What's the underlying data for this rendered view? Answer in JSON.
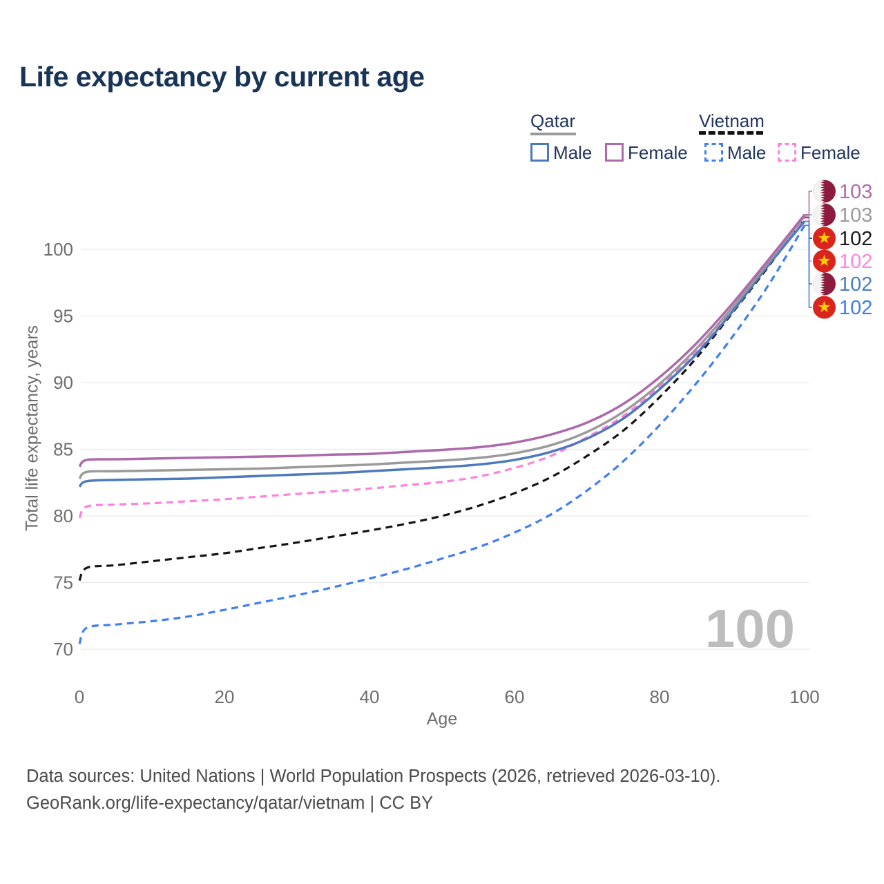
{
  "page": {
    "title": "Life expectancy by current age"
  },
  "legend": {
    "qatar": {
      "label": "Qatar",
      "male": "Male",
      "female": "Female"
    },
    "vietnam": {
      "label": "Vietnam",
      "male": "Male",
      "female": "Female"
    }
  },
  "chart_data": {
    "type": "line",
    "title": "Life expectancy by current age",
    "xlabel": "Age",
    "ylabel": "Total life expectancy, years",
    "xlim": [
      0,
      100
    ],
    "ylim": [
      70,
      100
    ],
    "x_ticks": [
      0,
      20,
      40,
      60,
      80,
      100
    ],
    "y_ticks": [
      70,
      75,
      80,
      85,
      90,
      95,
      100
    ],
    "grid": "horizontal",
    "legend_position": "top-right",
    "age_annotation": "100",
    "x": [
      0,
      1,
      5,
      10,
      15,
      20,
      25,
      30,
      35,
      40,
      45,
      50,
      55,
      60,
      65,
      70,
      75,
      80,
      85,
      90,
      95,
      100
    ],
    "series": [
      {
        "id": "qatar-female",
        "name": "Qatar Female",
        "country": "Qatar",
        "sex": "Female",
        "color": "#ad6aab",
        "dash": "solid",
        "flag": "qatar",
        "end_label": "103",
        "label_color": "#b06ab0",
        "values": [
          83.7,
          84.2,
          84.25,
          84.3,
          84.35,
          84.4,
          84.45,
          84.5,
          84.6,
          84.65,
          84.8,
          84.95,
          85.15,
          85.5,
          86.1,
          87.0,
          88.4,
          90.4,
          92.9,
          95.9,
          99.2,
          102.6
        ]
      },
      {
        "id": "qatar-both",
        "name": "Qatar Both sexes",
        "country": "Qatar",
        "sex": "Both",
        "color": "#9a9a9a",
        "dash": "solid",
        "flag": "qatar",
        "end_label": "103",
        "label_color": "#9a9a9a",
        "values": [
          82.8,
          83.3,
          83.35,
          83.4,
          83.45,
          83.5,
          83.55,
          83.65,
          83.75,
          83.85,
          84.0,
          84.15,
          84.35,
          84.7,
          85.3,
          86.3,
          87.8,
          89.9,
          92.5,
          95.6,
          99.0,
          102.5
        ]
      },
      {
        "id": "vietnam-both",
        "name": "Vietnam Both sexes",
        "country": "Vietnam",
        "sex": "Both",
        "color": "#141414",
        "dash": "dashed",
        "flag": "vietnam",
        "end_label": "102",
        "label_color": "#1a1a1a",
        "values": [
          75.15,
          76.1,
          76.3,
          76.6,
          76.9,
          77.2,
          77.6,
          78.0,
          78.45,
          78.9,
          79.4,
          80.0,
          80.75,
          81.7,
          82.9,
          84.5,
          86.4,
          88.9,
          91.8,
          95.2,
          98.7,
          102.4
        ]
      },
      {
        "id": "vietnam-female",
        "name": "Vietnam Female",
        "country": "Vietnam",
        "sex": "Female",
        "color": "#ff80df",
        "dash": "dashed",
        "flag": "vietnam",
        "end_label": "102",
        "label_color": "#ff85e0",
        "values": [
          79.85,
          80.7,
          80.85,
          80.95,
          81.1,
          81.25,
          81.45,
          81.65,
          81.85,
          82.05,
          82.3,
          82.55,
          82.95,
          83.6,
          84.5,
          85.9,
          87.5,
          89.7,
          92.3,
          95.5,
          98.9,
          102.35
        ]
      },
      {
        "id": "qatar-male",
        "name": "Qatar Male",
        "country": "Qatar",
        "sex": "Male",
        "color": "#4d79bd",
        "dash": "solid",
        "flag": "qatar",
        "end_label": "102",
        "label_color": "#4a7ec2",
        "values": [
          82.2,
          82.6,
          82.7,
          82.75,
          82.8,
          82.9,
          83.0,
          83.1,
          83.2,
          83.35,
          83.5,
          83.65,
          83.85,
          84.2,
          84.8,
          85.8,
          87.3,
          89.5,
          92.1,
          95.3,
          98.8,
          102.1
        ]
      },
      {
        "id": "vietnam-male",
        "name": "Vietnam Male",
        "country": "Vietnam",
        "sex": "Male",
        "color": "#3f7ef2",
        "dash": "dashed",
        "flag": "vietnam",
        "end_label": "102",
        "label_color": "#3d7df0",
        "values": [
          70.4,
          71.6,
          71.85,
          72.1,
          72.45,
          72.95,
          73.5,
          74.05,
          74.65,
          75.3,
          76.0,
          76.8,
          77.65,
          78.75,
          80.1,
          81.9,
          84.1,
          86.8,
          89.9,
          93.4,
          97.3,
          101.8
        ]
      }
    ]
  },
  "footer": {
    "line1": "Data sources: United Nations | World Population Prospects (2026, retrieved 2026-03-10).",
    "line2": "GeoRank.org/life-expectancy/qatar/vietnam | CC BY"
  }
}
